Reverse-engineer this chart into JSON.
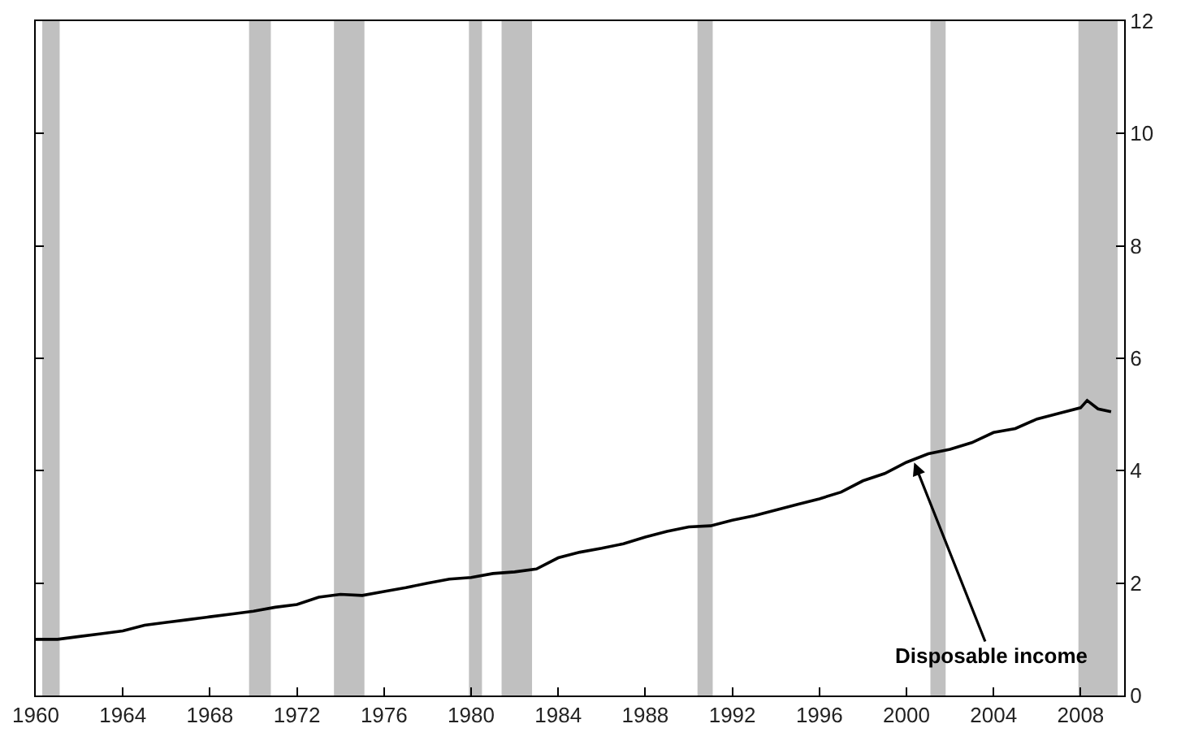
{
  "chart_data": {
    "type": "line",
    "x": [
      1960,
      1961,
      1962,
      1963,
      1964,
      1965,
      1966,
      1967,
      1968,
      1969,
      1970,
      1971,
      1972,
      1973,
      1974,
      1975,
      1976,
      1977,
      1978,
      1979,
      1980,
      1981,
      1982,
      1983,
      1984,
      1985,
      1986,
      1987,
      1988,
      1989,
      1990,
      1991,
      1992,
      1993,
      1994,
      1995,
      1996,
      1997,
      1998,
      1999,
      2000,
      2001,
      2002,
      2003,
      2004,
      2005,
      2006,
      2007,
      2008,
      2008.3,
      2008.8,
      2009.4
    ],
    "series": [
      {
        "color": "#000000",
        "values": [
          1.0,
          1.0,
          1.05,
          1.1,
          1.15,
          1.25,
          1.3,
          1.35,
          1.4,
          1.45,
          1.5,
          1.57,
          1.62,
          1.75,
          1.8,
          1.78,
          1.85,
          1.92,
          2.0,
          2.07,
          2.1,
          2.17,
          2.2,
          2.25,
          2.45,
          2.55,
          2.62,
          2.7,
          2.82,
          2.92,
          3.0,
          3.02,
          3.12,
          3.2,
          3.3,
          3.4,
          3.5,
          3.62,
          3.82,
          3.95,
          4.15,
          4.3,
          4.38,
          4.5,
          4.68,
          4.75,
          4.92,
          5.02,
          5.12,
          5.25,
          5.1,
          5.05
        ]
      }
    ],
    "xlim": [
      1960,
      2010
    ],
    "xticks": [
      1960,
      1964,
      1968,
      1972,
      1976,
      1980,
      1984,
      1988,
      1992,
      1996,
      2000,
      2004,
      2008
    ],
    "ylim": [
      0,
      12
    ],
    "yticks": [
      0,
      2,
      4,
      6,
      8,
      10,
      12
    ],
    "bands": [
      {
        "axis": "x",
        "from": 1960.3,
        "to": 1961.1,
        "color": "#c0c0c0"
      },
      {
        "axis": "x",
        "from": 1969.8,
        "to": 1970.8,
        "color": "#c0c0c0"
      },
      {
        "axis": "x",
        "from": 1973.7,
        "to": 1975.1,
        "color": "#c0c0c0"
      },
      {
        "axis": "x",
        "from": 1979.9,
        "to": 1980.5,
        "color": "#c0c0c0"
      },
      {
        "axis": "x",
        "from": 1981.4,
        "to": 1982.8,
        "color": "#c0c0c0"
      },
      {
        "axis": "x",
        "from": 1990.4,
        "to": 1991.1,
        "color": "#c0c0c0"
      },
      {
        "axis": "x",
        "from": 2001.1,
        "to": 2001.8,
        "color": "#c0c0c0"
      },
      {
        "axis": "x",
        "from": 2007.9,
        "to": 2009.7,
        "color": "#c0c0c0"
      }
    ],
    "annotations": [
      {
        "text": "Disposable income",
        "x": 2000.3,
        "y": 4.2
      }
    ],
    "marker": "none",
    "line_style": "solid"
  }
}
